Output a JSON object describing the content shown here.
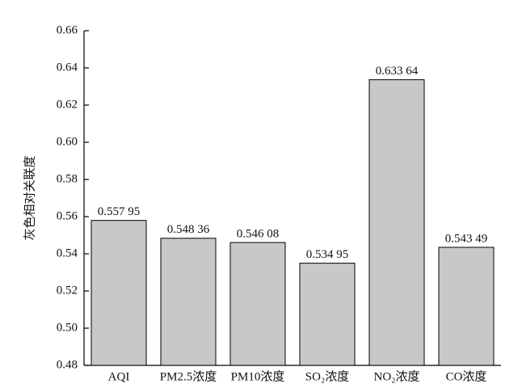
{
  "chart_data": {
    "type": "bar",
    "y_label": "灰色相对关联度",
    "categories": [
      "AQI",
      "PM2.5浓度",
      "PM10浓度",
      "SO₂浓度",
      "NO₂浓度",
      "CO浓度"
    ],
    "values": [
      0.55795,
      0.54836,
      0.54608,
      0.53495,
      0.63364,
      0.54349
    ],
    "value_labels": [
      "0.557 95",
      "0.548 36",
      "0.546 08",
      "0.534 95",
      "0.633 64",
      "0.543 49"
    ],
    "color": "#c8c8c8",
    "ylim": [
      0.48,
      0.66
    ],
    "yticks": [
      0.48,
      {
        "value": 0.5,
        "label": "0.50"
      },
      0.52,
      0.54,
      0.56,
      0.58,
      {
        "value": 0.6,
        "label": "0.60"
      },
      0.62,
      0.64,
      0.66
    ],
    "grid": false
  }
}
